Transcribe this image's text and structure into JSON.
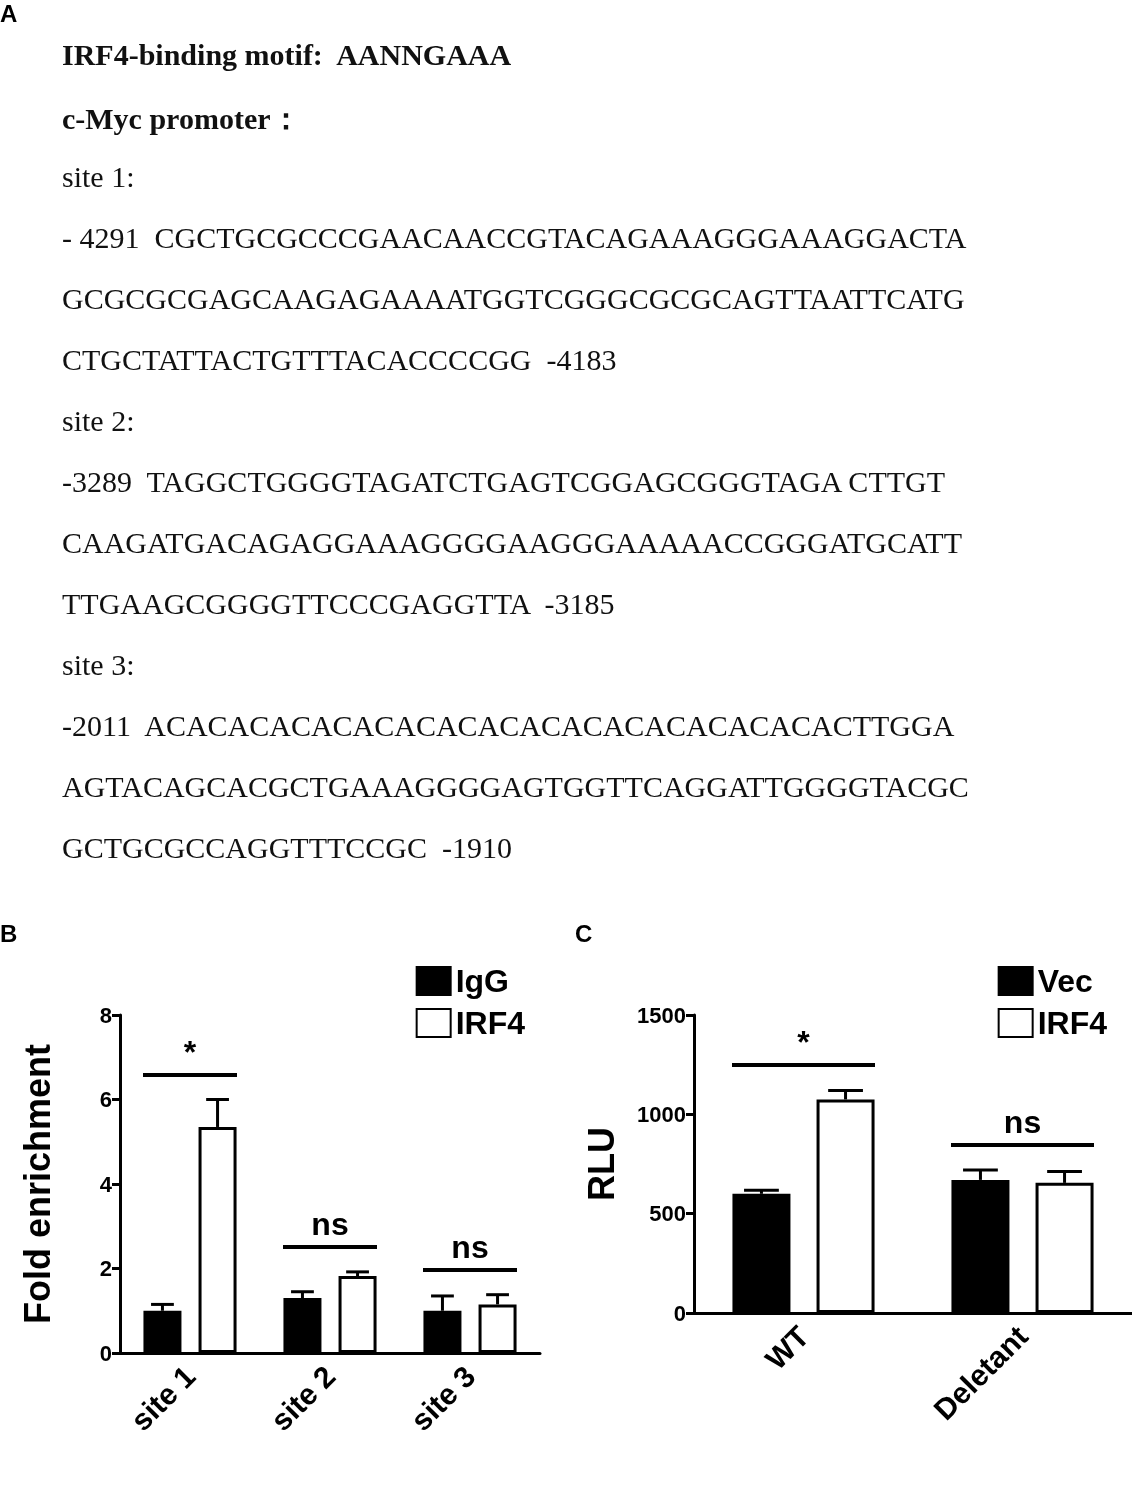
{
  "chart_data": [
    {
      "type": "other",
      "title": "A",
      "annotations": [
        "IRF4-binding motif:  AANNGAAA",
        "c-Myc promoter：",
        "site 1:",
        "- 4291  CGCTGCGCCCGAACAACCGTACAGAAAGGGAAAGGACTA",
        "GCGCGCGAGCAAGAGAAAATGGTCGGGCGCGCAGTTAATTCATG",
        "CTGCTATTACTGTTTACACCCCGG  -4183",
        "site 2:",
        "-3289  TAGGCTGGGGTAGATCTGAGTCGGAGCGGGTAGA CTTGT",
        "CAAGATGACAGAGGAAAGGGGAAGGGAAAAACCGGGATGCATT",
        "TTGAAGCGGGGTTCCCGAGGTTA  -3185",
        "site 3:",
        "-2011  ACACACACACACACACACACACACACACACACACTTGGA",
        "AGTACAGCACGCTGAAAGGGGAGTGGTTCAGGATTGGGGTACGC",
        "GCTGCGCCAGGTTTCCGC  -1910"
      ]
    },
    {
      "type": "bar",
      "title": "B",
      "ylabel": "Fold enrichment",
      "categories": [
        "site 1",
        "site 2",
        "site 3"
      ],
      "series": [
        {
          "name": "IgG",
          "color": "#000000",
          "values": [
            1.0,
            1.3,
            1.0
          ],
          "errors": [
            [
              1.0,
              1.15
            ],
            [
              1.3,
              1.45
            ],
            [
              1.0,
              1.35
            ]
          ]
        },
        {
          "name": "IRF4",
          "color": "#ffffff",
          "values": [
            5.35,
            1.82,
            1.15
          ],
          "errors": [
            [
              5.35,
              6.0
            ],
            [
              1.82,
              1.92
            ],
            [
              1.15,
              1.38
            ]
          ]
        }
      ],
      "ylim": [
        0,
        8
      ],
      "yticks": [
        0,
        2,
        4,
        6,
        8
      ],
      "legend": "top right",
      "grid": false,
      "annotations": [
        "*",
        "ns",
        "ns"
      ]
    },
    {
      "type": "bar",
      "title": "C",
      "ylabel": "RLU",
      "categories": [
        "WT",
        "Deletant"
      ],
      "series": [
        {
          "name": "Vec",
          "color": "#000000",
          "values": [
            600,
            670
          ],
          "errors": [
            [
              600,
              618
            ],
            [
              670,
              720
            ]
          ]
        },
        {
          "name": "IRF4",
          "color": "#ffffff",
          "values": [
            1075,
            655
          ],
          "errors": [
            [
              1075,
              1120
            ],
            [
              655,
              712
            ]
          ]
        }
      ],
      "ylim": [
        0,
        1500
      ],
      "yticks": [
        0,
        500,
        1000,
        1500
      ],
      "legend": "top right",
      "grid": false,
      "annotations": [
        "*",
        "ns"
      ]
    }
  ]
}
